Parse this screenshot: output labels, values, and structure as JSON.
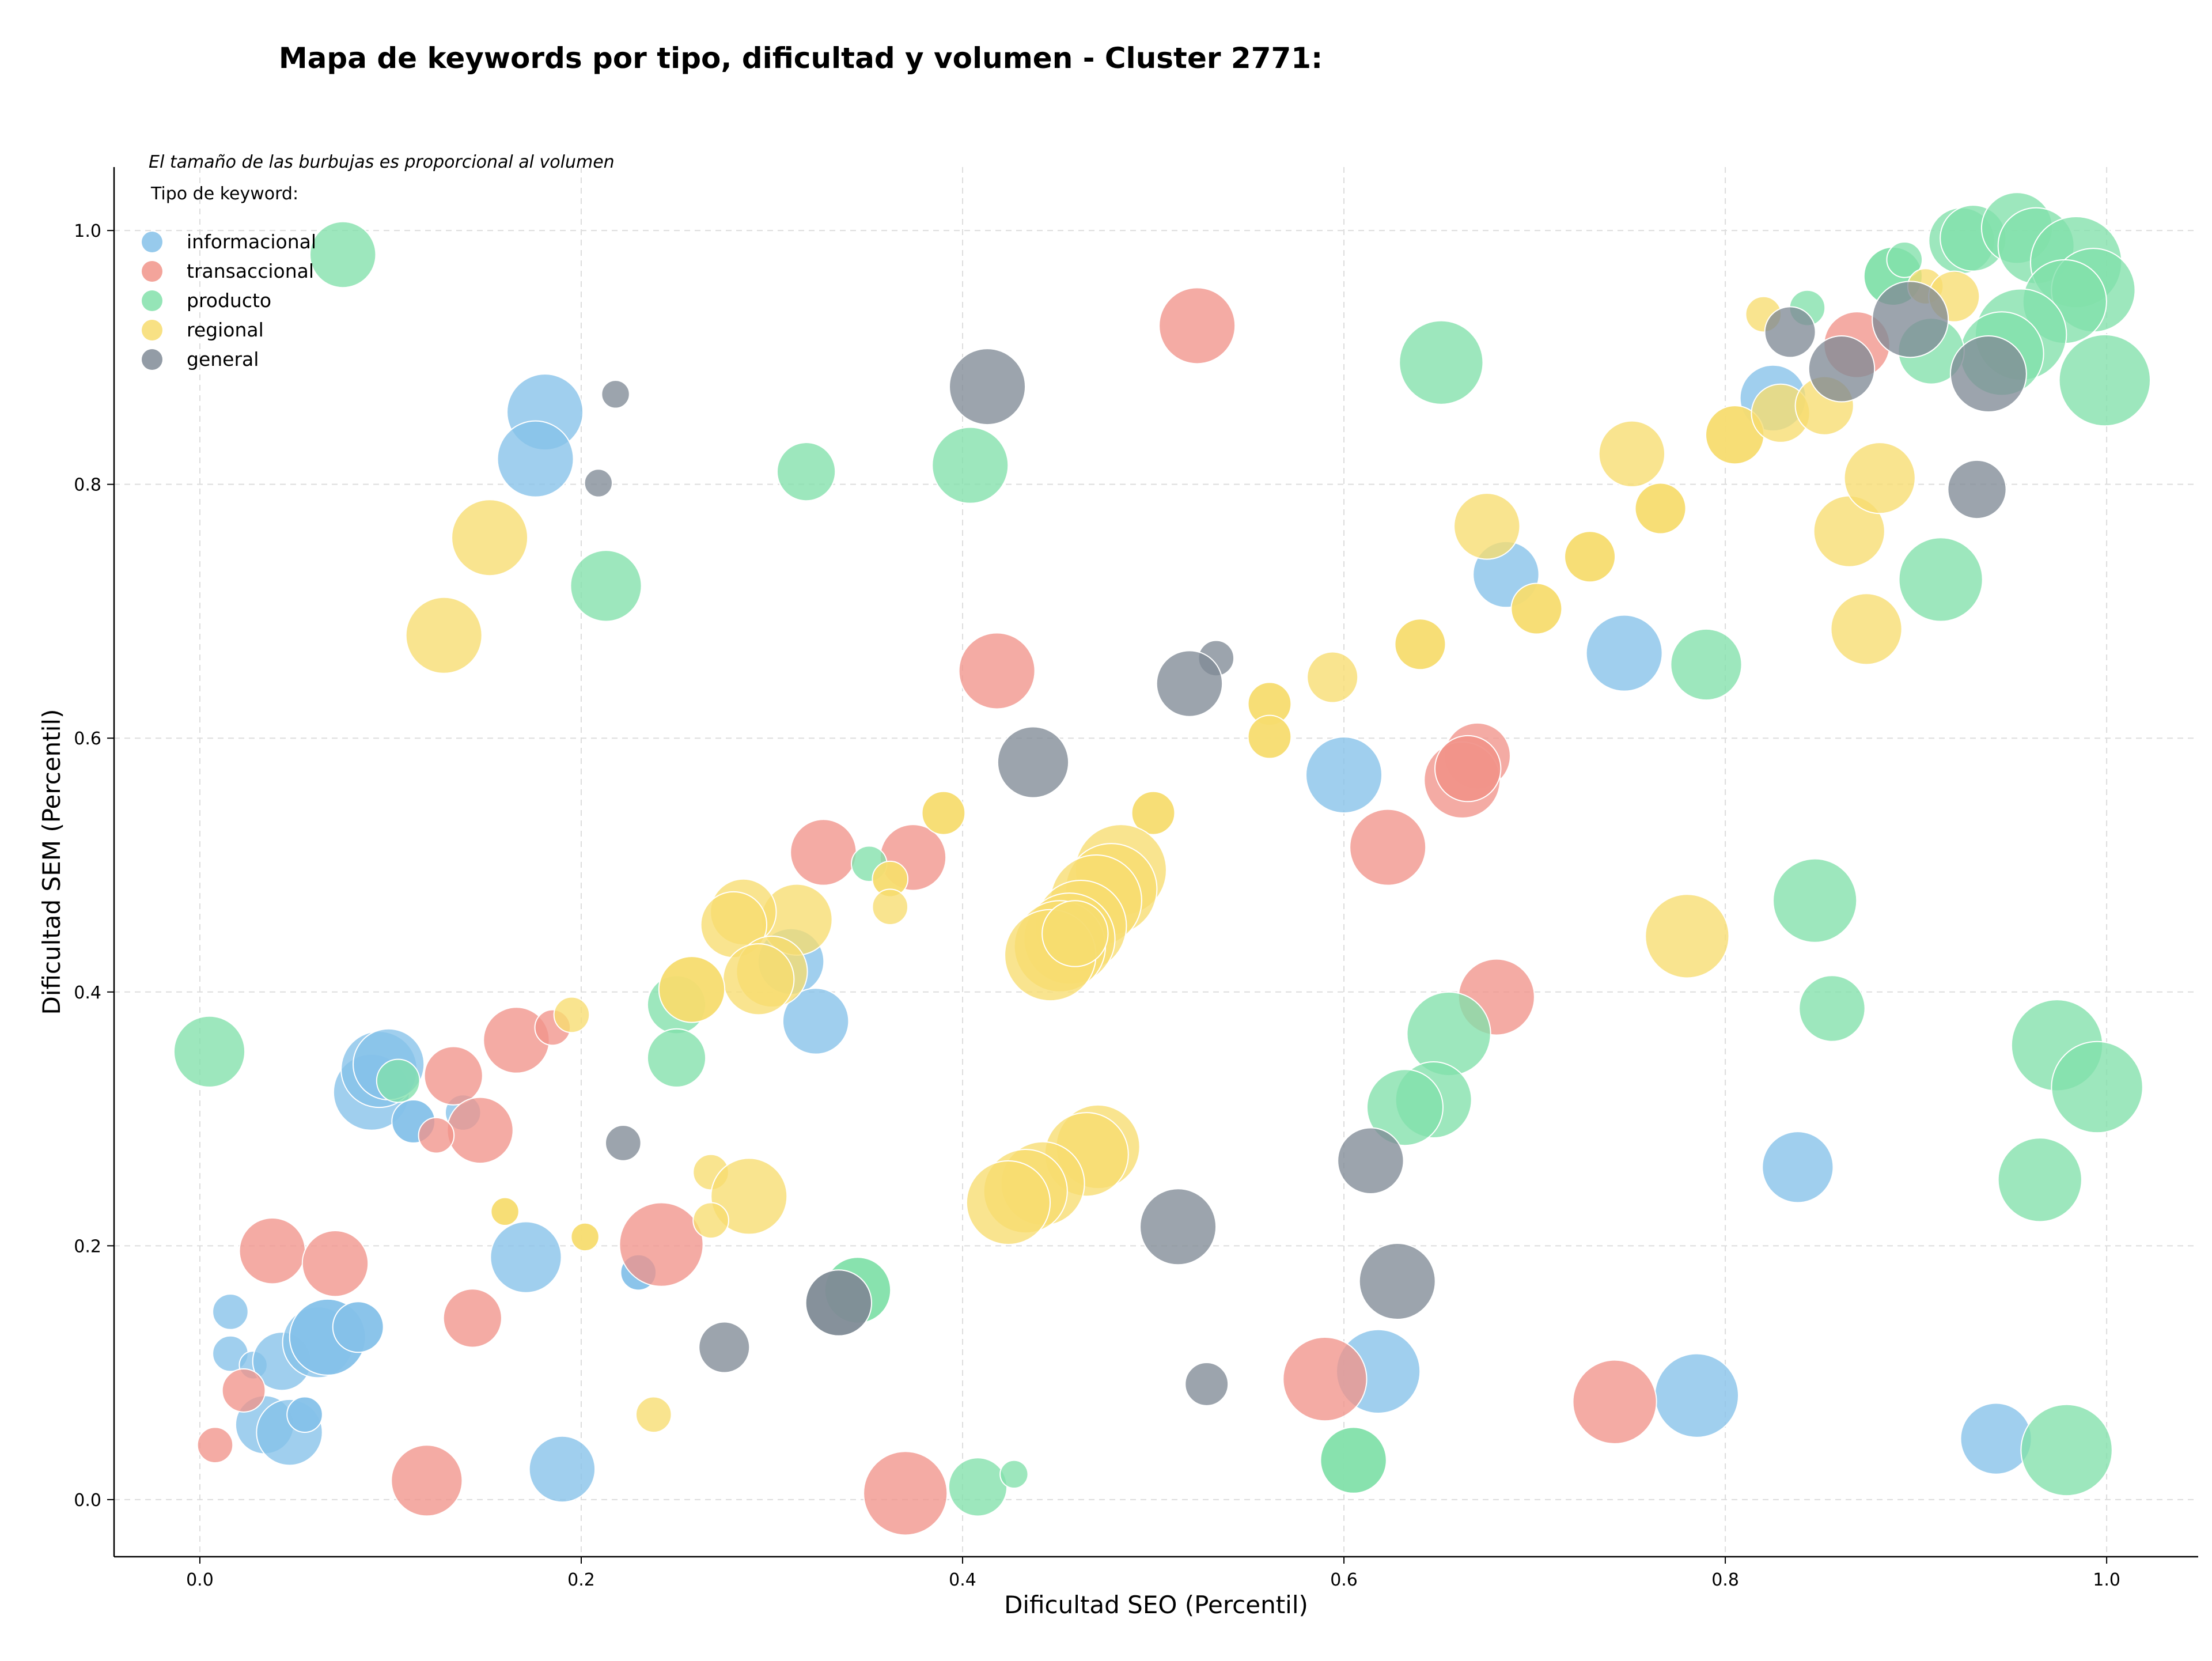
{
  "chart_data": {
    "type": "scatter",
    "title": "Mapa de keywords por tipo, dificultad y volumen - Cluster 2771:",
    "xlabel": "Dificultad SEO (Percentil)",
    "ylabel": "Dificultad SEM (Percentil)",
    "xlim": [
      -0.045,
      1.048
    ],
    "ylim": [
      -0.045,
      1.05
    ],
    "xticks": [
      "0.0",
      "0.2",
      "0.4",
      "0.6",
      "0.8",
      "1.0"
    ],
    "yticks": [
      "0.0",
      "0.2",
      "0.4",
      "0.6",
      "0.8",
      "1.0"
    ],
    "grid": true,
    "note": "El tamaño de las burbujas es proporcional al volumen",
    "legend": {
      "title": "Tipo de keyword:",
      "placement": "top-left",
      "entries": [
        "informacional",
        "transaccional",
        "producto",
        "regional",
        "general"
      ]
    },
    "colors": {
      "informacional": "#85C1E9",
      "transaccional": "#F1948A",
      "producto": "#82E0AA",
      "regional": "#F7DC6F",
      "general": "#808B96"
    },
    "series": [
      {
        "name": "informacional",
        "points": [
          {
            "x": 0.181,
            "y": 0.857,
            "r": 3.0
          },
          {
            "x": 0.176,
            "y": 0.82,
            "r": 3.0
          },
          {
            "x": 0.685,
            "y": 0.729,
            "r": 2.6
          },
          {
            "x": 0.747,
            "y": 0.667,
            "r": 3.0
          },
          {
            "x": 0.825,
            "y": 0.868,
            "r": 2.6
          },
          {
            "x": 0.6,
            "y": 0.571,
            "r": 3.0
          },
          {
            "x": 0.31,
            "y": 0.424,
            "r": 2.6
          },
          {
            "x": 0.323,
            "y": 0.377,
            "r": 2.6
          },
          {
            "x": 0.09,
            "y": 0.321,
            "r": 3.0
          },
          {
            "x": 0.094,
            "y": 0.339,
            "r": 3.0
          },
          {
            "x": 0.099,
            "y": 0.343,
            "r": 2.8
          },
          {
            "x": 0.112,
            "y": 0.298,
            "r": 1.7,
            "dark": true
          },
          {
            "x": 0.138,
            "y": 0.305,
            "r": 1.4
          },
          {
            "x": 0.171,
            "y": 0.191,
            "r": 2.8
          },
          {
            "x": 0.23,
            "y": 0.179,
            "r": 1.4,
            "dark": true
          },
          {
            "x": 0.016,
            "y": 0.148,
            "r": 1.4
          },
          {
            "x": 0.016,
            "y": 0.115,
            "r": 1.4
          },
          {
            "x": 0.028,
            "y": 0.106,
            "r": 1.1
          },
          {
            "x": 0.043,
            "y": 0.109,
            "r": 2.3
          },
          {
            "x": 0.062,
            "y": 0.124,
            "r": 2.8
          },
          {
            "x": 0.067,
            "y": 0.128,
            "r": 3.0,
            "dark": true
          },
          {
            "x": 0.083,
            "y": 0.136,
            "r": 2.0,
            "dark": true
          },
          {
            "x": 0.034,
            "y": 0.059,
            "r": 2.3
          },
          {
            "x": 0.047,
            "y": 0.053,
            "r": 2.6
          },
          {
            "x": 0.055,
            "y": 0.067,
            "r": 1.4,
            "dark": true
          },
          {
            "x": 0.19,
            "y": 0.024,
            "r": 2.6
          },
          {
            "x": 0.618,
            "y": 0.101,
            "r": 3.3
          },
          {
            "x": 0.785,
            "y": 0.082,
            "r": 3.3
          },
          {
            "x": 0.838,
            "y": 0.262,
            "r": 2.8
          },
          {
            "x": 0.942,
            "y": 0.048,
            "r": 2.8
          }
        ]
      },
      {
        "name": "transaccional",
        "points": [
          {
            "x": 0.523,
            "y": 0.925,
            "r": 3.0
          },
          {
            "x": 0.869,
            "y": 0.91,
            "r": 2.6
          },
          {
            "x": 0.418,
            "y": 0.653,
            "r": 3.0
          },
          {
            "x": 0.67,
            "y": 0.586,
            "r": 2.6
          },
          {
            "x": 0.662,
            "y": 0.567,
            "r": 3.0
          },
          {
            "x": 0.665,
            "y": 0.576,
            "r": 2.6,
            "dark": true
          },
          {
            "x": 0.623,
            "y": 0.514,
            "r": 3.0
          },
          {
            "x": 0.327,
            "y": 0.51,
            "r": 2.6
          },
          {
            "x": 0.374,
            "y": 0.506,
            "r": 2.6
          },
          {
            "x": 0.68,
            "y": 0.396,
            "r": 3.0
          },
          {
            "x": 0.166,
            "y": 0.362,
            "r": 2.6
          },
          {
            "x": 0.185,
            "y": 0.372,
            "r": 1.4
          },
          {
            "x": 0.133,
            "y": 0.334,
            "r": 2.3
          },
          {
            "x": 0.147,
            "y": 0.291,
            "r": 2.6
          },
          {
            "x": 0.124,
            "y": 0.287,
            "r": 1.4
          },
          {
            "x": 0.038,
            "y": 0.196,
            "r": 2.6
          },
          {
            "x": 0.071,
            "y": 0.186,
            "r": 2.6
          },
          {
            "x": 0.242,
            "y": 0.201,
            "r": 3.3
          },
          {
            "x": 0.143,
            "y": 0.143,
            "r": 2.3
          },
          {
            "x": 0.023,
            "y": 0.086,
            "r": 1.7
          },
          {
            "x": 0.008,
            "y": 0.043,
            "r": 1.4
          },
          {
            "x": 0.119,
            "y": 0.015,
            "r": 2.8
          },
          {
            "x": 0.37,
            "y": 0.005,
            "r": 3.3
          },
          {
            "x": 0.59,
            "y": 0.095,
            "r": 3.3
          },
          {
            "x": 0.742,
            "y": 0.077,
            "r": 3.3
          }
        ]
      },
      {
        "name": "producto",
        "points": [
          {
            "x": 0.075,
            "y": 0.981,
            "r": 2.6
          },
          {
            "x": 0.318,
            "y": 0.81,
            "r": 2.3
          },
          {
            "x": 0.404,
            "y": 0.815,
            "r": 3.0
          },
          {
            "x": 0.213,
            "y": 0.72,
            "r": 2.8
          },
          {
            "x": 0.651,
            "y": 0.896,
            "r": 3.3
          },
          {
            "x": 0.843,
            "y": 0.939,
            "r": 1.4
          },
          {
            "x": 0.888,
            "y": 0.964,
            "r": 2.3,
            "dark": true
          },
          {
            "x": 0.894,
            "y": 0.977,
            "r": 1.4
          },
          {
            "x": 0.924,
            "y": 0.992,
            "r": 2.6
          },
          {
            "x": 0.93,
            "y": 0.994,
            "r": 2.6
          },
          {
            "x": 0.953,
            "y": 1.002,
            "r": 2.8
          },
          {
            "x": 0.963,
            "y": 0.988,
            "r": 3.0
          },
          {
            "x": 0.984,
            "y": 0.975,
            "r": 3.6
          },
          {
            "x": 0.993,
            "y": 0.953,
            "r": 3.3
          },
          {
            "x": 0.978,
            "y": 0.944,
            "r": 3.3
          },
          {
            "x": 0.955,
            "y": 0.918,
            "r": 3.6
          },
          {
            "x": 0.945,
            "y": 0.903,
            "r": 3.3
          },
          {
            "x": 0.908,
            "y": 0.905,
            "r": 2.6
          },
          {
            "x": 0.999,
            "y": 0.882,
            "r": 3.6
          },
          {
            "x": 0.913,
            "y": 0.725,
            "r": 3.3
          },
          {
            "x": 0.79,
            "y": 0.658,
            "r": 2.8
          },
          {
            "x": 0.847,
            "y": 0.472,
            "r": 3.3
          },
          {
            "x": 0.856,
            "y": 0.387,
            "r": 2.6
          },
          {
            "x": 0.974,
            "y": 0.358,
            "r": 3.6
          },
          {
            "x": 0.995,
            "y": 0.325,
            "r": 3.6
          },
          {
            "x": 0.965,
            "y": 0.252,
            "r": 3.3
          },
          {
            "x": 0.979,
            "y": 0.039,
            "r": 3.6
          },
          {
            "x": 0.655,
            "y": 0.367,
            "r": 3.3
          },
          {
            "x": 0.647,
            "y": 0.315,
            "r": 3.0
          },
          {
            "x": 0.632,
            "y": 0.309,
            "r": 3.0
          },
          {
            "x": 0.605,
            "y": 0.031,
            "r": 2.6,
            "dark": true
          },
          {
            "x": 0.005,
            "y": 0.353,
            "r": 2.8
          },
          {
            "x": 0.25,
            "y": 0.39,
            "r": 2.3
          },
          {
            "x": 0.25,
            "y": 0.348,
            "r": 2.3
          },
          {
            "x": 0.104,
            "y": 0.33,
            "r": 1.7
          },
          {
            "x": 0.351,
            "y": 0.501,
            "r": 1.4
          },
          {
            "x": 0.345,
            "y": 0.165,
            "r": 2.6,
            "dark": true
          },
          {
            "x": 0.408,
            "y": 0.01,
            "r": 2.3
          },
          {
            "x": 0.427,
            "y": 0.02,
            "r": 1.1
          }
        ]
      },
      {
        "name": "regional",
        "points": [
          {
            "x": 0.152,
            "y": 0.758,
            "r": 3.0
          },
          {
            "x": 0.128,
            "y": 0.681,
            "r": 3.0
          },
          {
            "x": 0.594,
            "y": 0.648,
            "r": 2.0
          },
          {
            "x": 0.64,
            "y": 0.674,
            "r": 2.0,
            "dark": true
          },
          {
            "x": 0.675,
            "y": 0.767,
            "r": 2.6
          },
          {
            "x": 0.701,
            "y": 0.702,
            "r": 2.0,
            "dark": true
          },
          {
            "x": 0.729,
            "y": 0.743,
            "r": 2.0,
            "dark": true
          },
          {
            "x": 0.751,
            "y": 0.824,
            "r": 2.6
          },
          {
            "x": 0.766,
            "y": 0.781,
            "r": 2.0,
            "dark": true
          },
          {
            "x": 0.805,
            "y": 0.839,
            "r": 2.3,
            "dark": true
          },
          {
            "x": 0.82,
            "y": 0.934,
            "r": 1.4
          },
          {
            "x": 0.829,
            "y": 0.856,
            "r": 2.3
          },
          {
            "x": 0.852,
            "y": 0.862,
            "r": 2.3
          },
          {
            "x": 0.865,
            "y": 0.763,
            "r": 2.8
          },
          {
            "x": 0.881,
            "y": 0.805,
            "r": 2.8
          },
          {
            "x": 0.874,
            "y": 0.686,
            "r": 2.8
          },
          {
            "x": 0.905,
            "y": 0.956,
            "r": 1.4
          },
          {
            "x": 0.92,
            "y": 0.948,
            "r": 2.0
          },
          {
            "x": 0.78,
            "y": 0.444,
            "r": 3.3
          },
          {
            "x": 0.561,
            "y": 0.627,
            "r": 1.7,
            "dark": true
          },
          {
            "x": 0.561,
            "y": 0.601,
            "r": 1.7,
            "dark": true
          },
          {
            "x": 0.5,
            "y": 0.541,
            "r": 1.7,
            "dark": true
          },
          {
            "x": 0.39,
            "y": 0.541,
            "r": 1.7,
            "dark": true
          },
          {
            "x": 0.362,
            "y": 0.489,
            "r": 1.4,
            "dark": true
          },
          {
            "x": 0.362,
            "y": 0.467,
            "r": 1.4
          },
          {
            "x": 0.483,
            "y": 0.496,
            "r": 3.6
          },
          {
            "x": 0.478,
            "y": 0.481,
            "r": 3.6
          },
          {
            "x": 0.47,
            "y": 0.472,
            "r": 3.6
          },
          {
            "x": 0.462,
            "y": 0.452,
            "r": 3.6
          },
          {
            "x": 0.456,
            "y": 0.442,
            "r": 3.6
          },
          {
            "x": 0.451,
            "y": 0.436,
            "r": 3.6
          },
          {
            "x": 0.446,
            "y": 0.429,
            "r": 3.6
          },
          {
            "x": 0.459,
            "y": 0.446,
            "r": 2.6,
            "dark": true
          },
          {
            "x": 0.313,
            "y": 0.457,
            "r": 2.8
          },
          {
            "x": 0.285,
            "y": 0.463,
            "r": 2.6
          },
          {
            "x": 0.28,
            "y": 0.453,
            "r": 2.6
          },
          {
            "x": 0.3,
            "y": 0.416,
            "r": 2.8
          },
          {
            "x": 0.293,
            "y": 0.41,
            "r": 2.8
          },
          {
            "x": 0.258,
            "y": 0.402,
            "r": 2.6,
            "dark": true
          },
          {
            "x": 0.195,
            "y": 0.382,
            "r": 1.4
          },
          {
            "x": 0.268,
            "y": 0.258,
            "r": 1.4
          },
          {
            "x": 0.288,
            "y": 0.239,
            "r": 3.0
          },
          {
            "x": 0.268,
            "y": 0.22,
            "r": 1.4
          },
          {
            "x": 0.16,
            "y": 0.227,
            "r": 1.1,
            "dark": true
          },
          {
            "x": 0.202,
            "y": 0.207,
            "r": 1.1,
            "dark": true
          },
          {
            "x": 0.238,
            "y": 0.067,
            "r": 1.4
          },
          {
            "x": 0.471,
            "y": 0.278,
            "r": 3.3
          },
          {
            "x": 0.465,
            "y": 0.272,
            "r": 3.3
          },
          {
            "x": 0.442,
            "y": 0.249,
            "r": 3.3
          },
          {
            "x": 0.433,
            "y": 0.243,
            "r": 3.3
          },
          {
            "x": 0.424,
            "y": 0.234,
            "r": 3.3
          }
        ]
      },
      {
        "name": "general",
        "points": [
          {
            "x": 0.218,
            "y": 0.871,
            "r": 1.1
          },
          {
            "x": 0.209,
            "y": 0.801,
            "r": 1.1
          },
          {
            "x": 0.413,
            "y": 0.877,
            "r": 3.0
          },
          {
            "x": 0.834,
            "y": 0.92,
            "r": 2.0
          },
          {
            "x": 0.861,
            "y": 0.891,
            "r": 2.6
          },
          {
            "x": 0.897,
            "y": 0.93,
            "r": 3.0
          },
          {
            "x": 0.938,
            "y": 0.887,
            "r": 3.0
          },
          {
            "x": 0.932,
            "y": 0.796,
            "r": 2.3
          },
          {
            "x": 0.533,
            "y": 0.663,
            "r": 1.4
          },
          {
            "x": 0.519,
            "y": 0.643,
            "r": 2.6
          },
          {
            "x": 0.437,
            "y": 0.581,
            "r": 2.8
          },
          {
            "x": 0.614,
            "y": 0.267,
            "r": 2.6
          },
          {
            "x": 0.628,
            "y": 0.172,
            "r": 3.0
          },
          {
            "x": 0.513,
            "y": 0.215,
            "r": 3.0
          },
          {
            "x": 0.528,
            "y": 0.091,
            "r": 1.7
          },
          {
            "x": 0.222,
            "y": 0.281,
            "r": 1.4
          },
          {
            "x": 0.275,
            "y": 0.12,
            "r": 2.0
          },
          {
            "x": 0.335,
            "y": 0.155,
            "r": 2.6,
            "dark": true
          }
        ]
      }
    ]
  }
}
